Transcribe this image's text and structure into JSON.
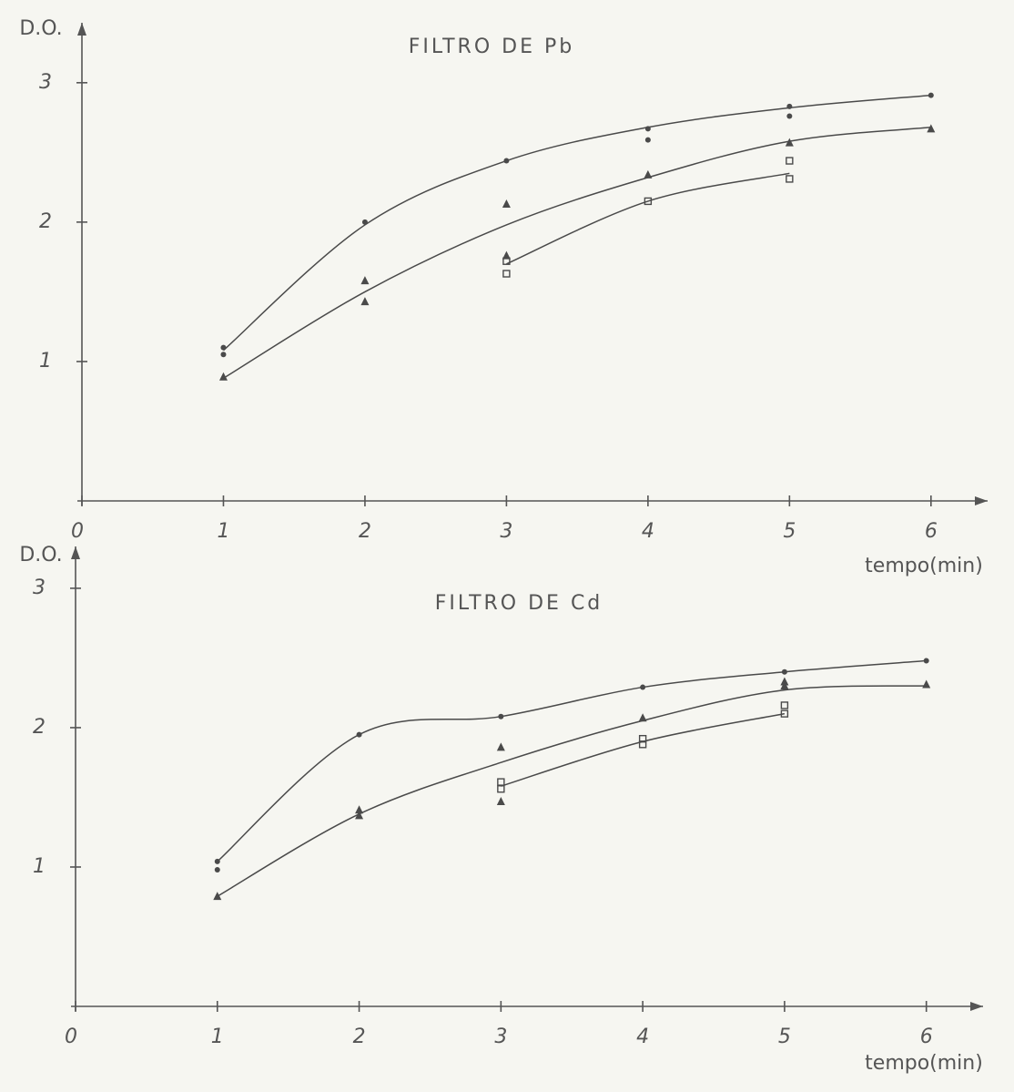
{
  "chart_data": [
    {
      "type": "scatter",
      "title": "FILTRO DE Pb",
      "xlabel": "tempo(min)",
      "ylabel": "D.O.",
      "xlim": [
        0,
        6.4
      ],
      "ylim": [
        0,
        3.43
      ],
      "xticks": [
        0,
        1,
        2,
        3,
        4,
        5,
        6
      ],
      "yticks": [
        1,
        2,
        3
      ],
      "color": "#4a4a4a",
      "series": [
        {
          "marker": "dot",
          "x": [
            1,
            1,
            2,
            3,
            4,
            4,
            5,
            5,
            6
          ],
          "values": [
            1.1,
            1.05,
            2.0,
            2.44,
            2.67,
            2.59,
            2.83,
            2.76,
            2.91
          ]
        },
        {
          "marker": "triangle",
          "x": [
            1,
            2,
            2,
            3,
            3,
            4,
            5,
            6
          ],
          "values": [
            0.89,
            1.58,
            1.43,
            2.13,
            1.76,
            2.34,
            2.57,
            2.67
          ]
        },
        {
          "marker": "square",
          "x": [
            3,
            3,
            4,
            5,
            5
          ],
          "values": [
            1.72,
            1.63,
            2.15,
            2.44,
            2.31
          ]
        }
      ],
      "curves": [
        {
          "x": [
            1,
            2,
            3,
            4,
            5,
            6
          ],
          "values": [
            1.08,
            1.98,
            2.44,
            2.68,
            2.82,
            2.91
          ]
        },
        {
          "x": [
            1,
            2,
            3,
            4,
            5,
            6
          ],
          "values": [
            0.88,
            1.5,
            1.98,
            2.32,
            2.58,
            2.68
          ]
        },
        {
          "x": [
            1,
            2,
            3,
            4,
            5,
            6
          ],
          "values": [
            null,
            null,
            1.7,
            2.15,
            2.35,
            null
          ]
        }
      ]
    },
    {
      "type": "scatter",
      "title": "FILTRO DE Cd",
      "xlabel": "tempo(min)",
      "ylabel": "D.O.",
      "xlim": [
        0,
        6.4
      ],
      "ylim": [
        0,
        3.3
      ],
      "xticks": [
        0,
        1,
        2,
        3,
        4,
        5,
        6
      ],
      "yticks": [
        1,
        2,
        3
      ],
      "color": "#4a4a4a",
      "series": [
        {
          "marker": "dot",
          "x": [
            1,
            1,
            2,
            3,
            4,
            5,
            6
          ],
          "values": [
            1.04,
            0.98,
            1.95,
            2.08,
            2.29,
            2.4,
            2.48
          ]
        },
        {
          "marker": "triangle",
          "x": [
            1,
            2,
            2,
            3,
            3,
            4,
            5,
            5,
            6
          ],
          "values": [
            0.79,
            1.41,
            1.37,
            1.86,
            1.47,
            2.07,
            2.3,
            2.33,
            2.31
          ]
        },
        {
          "marker": "square",
          "x": [
            3,
            3,
            4,
            4,
            5,
            5
          ],
          "values": [
            1.61,
            1.56,
            1.92,
            1.88,
            2.16,
            2.1
          ]
        }
      ],
      "curves": [
        {
          "x": [
            1,
            2,
            3,
            4,
            5,
            6
          ],
          "values": [
            1.04,
            1.95,
            2.08,
            2.29,
            2.4,
            2.48
          ]
        },
        {
          "x": [
            1,
            2,
            3,
            4,
            5,
            6
          ],
          "values": [
            0.79,
            1.38,
            1.75,
            2.05,
            2.27,
            2.3
          ]
        },
        {
          "x": [
            1,
            2,
            3,
            4,
            5,
            6
          ],
          "values": [
            null,
            null,
            1.58,
            1.9,
            2.1,
            null
          ]
        }
      ]
    }
  ]
}
